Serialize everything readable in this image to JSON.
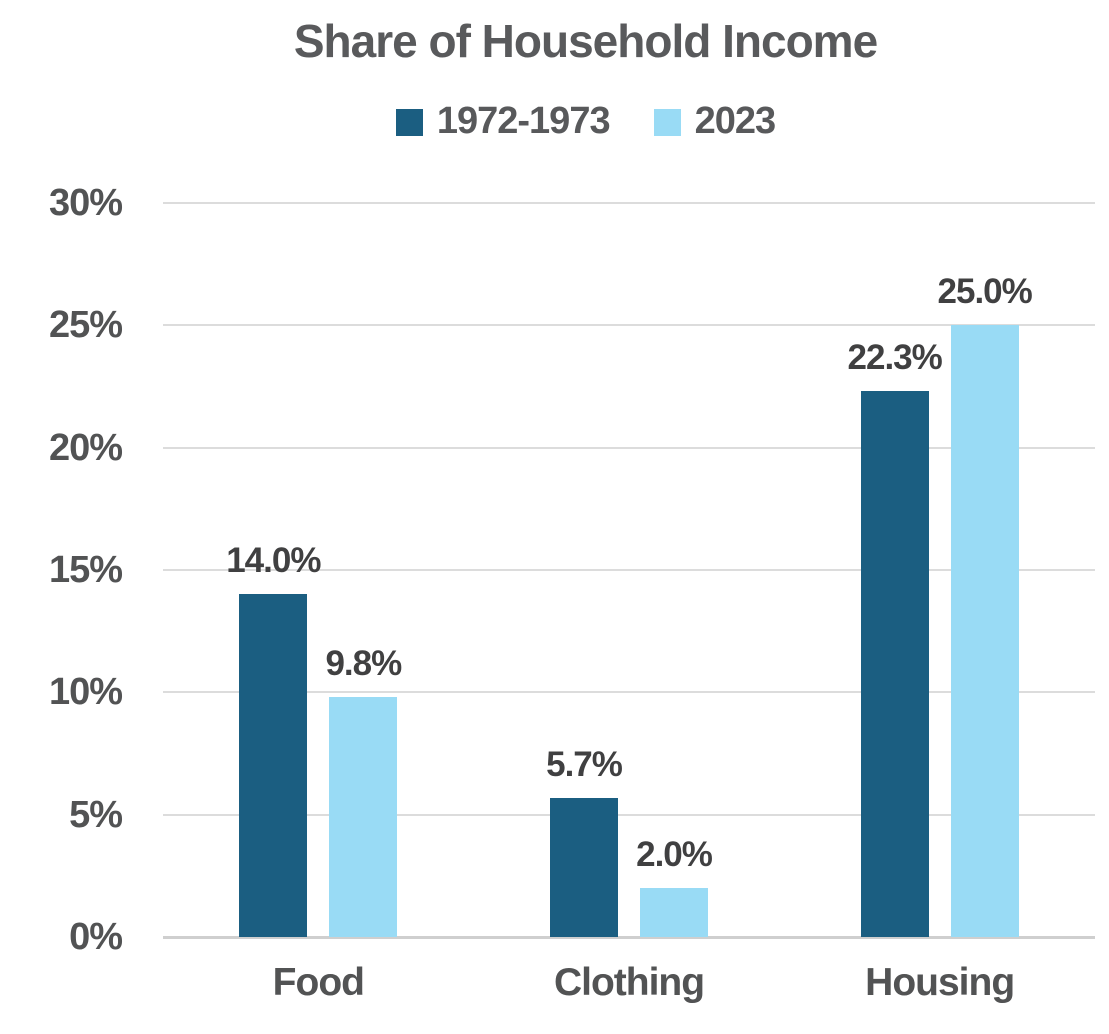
{
  "chart_data": {
    "type": "bar",
    "title": "Share of Household Income",
    "categories": [
      "Food",
      "Clothing",
      "Housing"
    ],
    "series": [
      {
        "name": "1972-1973",
        "color": "#1b5e81",
        "values": [
          14.0,
          5.7,
          22.3
        ],
        "labels": [
          "14.0%",
          "5.7%",
          "22.3%"
        ]
      },
      {
        "name": "2023",
        "color": "#99dbf5",
        "values": [
          9.8,
          2.0,
          25.0
        ],
        "labels": [
          "9.8%",
          "2.0%",
          "25.0%"
        ]
      }
    ],
    "ylim": [
      0,
      30
    ],
    "y_ticks": [
      {
        "value": 30,
        "label": "30%"
      },
      {
        "value": 25,
        "label": "25%"
      },
      {
        "value": 20,
        "label": "20%"
      },
      {
        "value": 15,
        "label": "15%"
      },
      {
        "value": 10,
        "label": "10%"
      },
      {
        "value": 5,
        "label": "5%"
      },
      {
        "value": 0,
        "label": "0%"
      }
    ],
    "grid": "horizontal",
    "legend_position": "top",
    "colors": {
      "title_text": "#595a5c",
      "axis_text": "#525354",
      "data_label_text": "#404041",
      "gridline": "#dcdcdc",
      "baseline": "#cfcfcf",
      "background": "#ffffff"
    }
  }
}
